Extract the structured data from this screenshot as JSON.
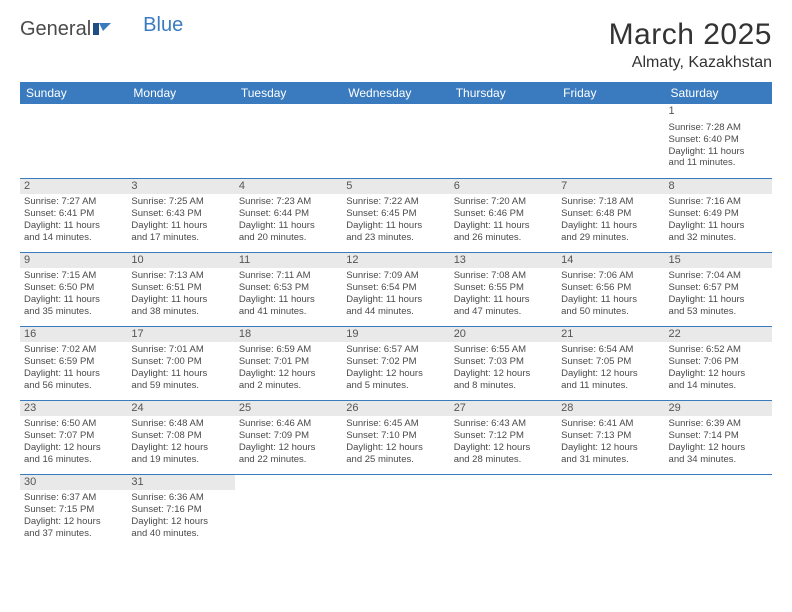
{
  "logo": {
    "general": "General",
    "blue": "Blue"
  },
  "header": {
    "month": "March 2025",
    "location": "Almaty, Kazakhstan"
  },
  "dayHeaders": [
    "Sunday",
    "Monday",
    "Tuesday",
    "Wednesday",
    "Thursday",
    "Friday",
    "Saturday"
  ],
  "colors": {
    "headerBg": "#3a7bbf",
    "headerText": "#ffffff",
    "dayNumBg": "#e9e9e9",
    "border": "#3a7bbf"
  },
  "weeks": [
    [
      null,
      null,
      null,
      null,
      null,
      null,
      {
        "num": "1",
        "nobg": true,
        "sunrise": "Sunrise: 7:28 AM",
        "sunset": "Sunset: 6:40 PM",
        "daylight1": "Daylight: 11 hours",
        "daylight2": "and 11 minutes."
      }
    ],
    [
      {
        "num": "2",
        "sunrise": "Sunrise: 7:27 AM",
        "sunset": "Sunset: 6:41 PM",
        "daylight1": "Daylight: 11 hours",
        "daylight2": "and 14 minutes."
      },
      {
        "num": "3",
        "sunrise": "Sunrise: 7:25 AM",
        "sunset": "Sunset: 6:43 PM",
        "daylight1": "Daylight: 11 hours",
        "daylight2": "and 17 minutes."
      },
      {
        "num": "4",
        "sunrise": "Sunrise: 7:23 AM",
        "sunset": "Sunset: 6:44 PM",
        "daylight1": "Daylight: 11 hours",
        "daylight2": "and 20 minutes."
      },
      {
        "num": "5",
        "sunrise": "Sunrise: 7:22 AM",
        "sunset": "Sunset: 6:45 PM",
        "daylight1": "Daylight: 11 hours",
        "daylight2": "and 23 minutes."
      },
      {
        "num": "6",
        "sunrise": "Sunrise: 7:20 AM",
        "sunset": "Sunset: 6:46 PM",
        "daylight1": "Daylight: 11 hours",
        "daylight2": "and 26 minutes."
      },
      {
        "num": "7",
        "sunrise": "Sunrise: 7:18 AM",
        "sunset": "Sunset: 6:48 PM",
        "daylight1": "Daylight: 11 hours",
        "daylight2": "and 29 minutes."
      },
      {
        "num": "8",
        "sunrise": "Sunrise: 7:16 AM",
        "sunset": "Sunset: 6:49 PM",
        "daylight1": "Daylight: 11 hours",
        "daylight2": "and 32 minutes."
      }
    ],
    [
      {
        "num": "9",
        "sunrise": "Sunrise: 7:15 AM",
        "sunset": "Sunset: 6:50 PM",
        "daylight1": "Daylight: 11 hours",
        "daylight2": "and 35 minutes."
      },
      {
        "num": "10",
        "sunrise": "Sunrise: 7:13 AM",
        "sunset": "Sunset: 6:51 PM",
        "daylight1": "Daylight: 11 hours",
        "daylight2": "and 38 minutes."
      },
      {
        "num": "11",
        "sunrise": "Sunrise: 7:11 AM",
        "sunset": "Sunset: 6:53 PM",
        "daylight1": "Daylight: 11 hours",
        "daylight2": "and 41 minutes."
      },
      {
        "num": "12",
        "sunrise": "Sunrise: 7:09 AM",
        "sunset": "Sunset: 6:54 PM",
        "daylight1": "Daylight: 11 hours",
        "daylight2": "and 44 minutes."
      },
      {
        "num": "13",
        "sunrise": "Sunrise: 7:08 AM",
        "sunset": "Sunset: 6:55 PM",
        "daylight1": "Daylight: 11 hours",
        "daylight2": "and 47 minutes."
      },
      {
        "num": "14",
        "sunrise": "Sunrise: 7:06 AM",
        "sunset": "Sunset: 6:56 PM",
        "daylight1": "Daylight: 11 hours",
        "daylight2": "and 50 minutes."
      },
      {
        "num": "15",
        "sunrise": "Sunrise: 7:04 AM",
        "sunset": "Sunset: 6:57 PM",
        "daylight1": "Daylight: 11 hours",
        "daylight2": "and 53 minutes."
      }
    ],
    [
      {
        "num": "16",
        "sunrise": "Sunrise: 7:02 AM",
        "sunset": "Sunset: 6:59 PM",
        "daylight1": "Daylight: 11 hours",
        "daylight2": "and 56 minutes."
      },
      {
        "num": "17",
        "sunrise": "Sunrise: 7:01 AM",
        "sunset": "Sunset: 7:00 PM",
        "daylight1": "Daylight: 11 hours",
        "daylight2": "and 59 minutes."
      },
      {
        "num": "18",
        "sunrise": "Sunrise: 6:59 AM",
        "sunset": "Sunset: 7:01 PM",
        "daylight1": "Daylight: 12 hours",
        "daylight2": "and 2 minutes."
      },
      {
        "num": "19",
        "sunrise": "Sunrise: 6:57 AM",
        "sunset": "Sunset: 7:02 PM",
        "daylight1": "Daylight: 12 hours",
        "daylight2": "and 5 minutes."
      },
      {
        "num": "20",
        "sunrise": "Sunrise: 6:55 AM",
        "sunset": "Sunset: 7:03 PM",
        "daylight1": "Daylight: 12 hours",
        "daylight2": "and 8 minutes."
      },
      {
        "num": "21",
        "sunrise": "Sunrise: 6:54 AM",
        "sunset": "Sunset: 7:05 PM",
        "daylight1": "Daylight: 12 hours",
        "daylight2": "and 11 minutes."
      },
      {
        "num": "22",
        "sunrise": "Sunrise: 6:52 AM",
        "sunset": "Sunset: 7:06 PM",
        "daylight1": "Daylight: 12 hours",
        "daylight2": "and 14 minutes."
      }
    ],
    [
      {
        "num": "23",
        "sunrise": "Sunrise: 6:50 AM",
        "sunset": "Sunset: 7:07 PM",
        "daylight1": "Daylight: 12 hours",
        "daylight2": "and 16 minutes."
      },
      {
        "num": "24",
        "sunrise": "Sunrise: 6:48 AM",
        "sunset": "Sunset: 7:08 PM",
        "daylight1": "Daylight: 12 hours",
        "daylight2": "and 19 minutes."
      },
      {
        "num": "25",
        "sunrise": "Sunrise: 6:46 AM",
        "sunset": "Sunset: 7:09 PM",
        "daylight1": "Daylight: 12 hours",
        "daylight2": "and 22 minutes."
      },
      {
        "num": "26",
        "sunrise": "Sunrise: 6:45 AM",
        "sunset": "Sunset: 7:10 PM",
        "daylight1": "Daylight: 12 hours",
        "daylight2": "and 25 minutes."
      },
      {
        "num": "27",
        "sunrise": "Sunrise: 6:43 AM",
        "sunset": "Sunset: 7:12 PM",
        "daylight1": "Daylight: 12 hours",
        "daylight2": "and 28 minutes."
      },
      {
        "num": "28",
        "sunrise": "Sunrise: 6:41 AM",
        "sunset": "Sunset: 7:13 PM",
        "daylight1": "Daylight: 12 hours",
        "daylight2": "and 31 minutes."
      },
      {
        "num": "29",
        "sunrise": "Sunrise: 6:39 AM",
        "sunset": "Sunset: 7:14 PM",
        "daylight1": "Daylight: 12 hours",
        "daylight2": "and 34 minutes."
      }
    ],
    [
      {
        "num": "30",
        "sunrise": "Sunrise: 6:37 AM",
        "sunset": "Sunset: 7:15 PM",
        "daylight1": "Daylight: 12 hours",
        "daylight2": "and 37 minutes."
      },
      {
        "num": "31",
        "sunrise": "Sunrise: 6:36 AM",
        "sunset": "Sunset: 7:16 PM",
        "daylight1": "Daylight: 12 hours",
        "daylight2": "and 40 minutes."
      },
      null,
      null,
      null,
      null,
      null
    ]
  ]
}
